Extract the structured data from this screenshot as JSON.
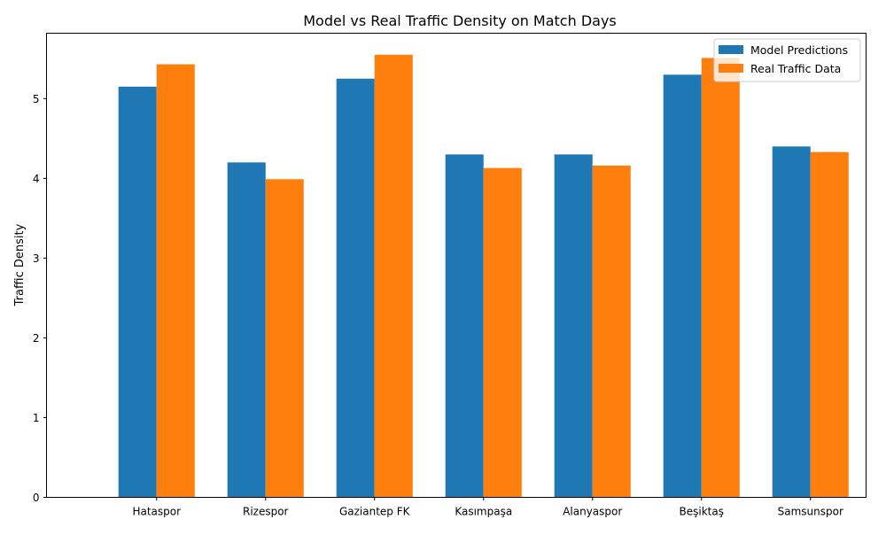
{
  "chart_data": {
    "type": "bar",
    "title": "Model vs Real Traffic Density on Match Days",
    "xlabel": "",
    "ylabel": "Traffic Density",
    "categories": [
      "Hataspor",
      "Rizespor",
      "Gaziantep FK",
      "Kasımpaşa",
      "Alanyaspor",
      "Beşiktaş",
      "Samsunspor"
    ],
    "series": [
      {
        "name": "Model Predictions",
        "color": "#1f77b4",
        "values": [
          5.15,
          4.2,
          5.25,
          4.3,
          4.3,
          5.3,
          4.4
        ]
      },
      {
        "name": "Real Traffic Data",
        "color": "#ff7f0e",
        "values": [
          5.43,
          3.99,
          5.55,
          4.13,
          4.16,
          5.51,
          4.33
        ]
      }
    ],
    "ylim": [
      0,
      5.82
    ],
    "yticks": [
      0,
      1,
      2,
      3,
      4,
      5
    ],
    "grid": false,
    "legend_position": "top-right"
  }
}
